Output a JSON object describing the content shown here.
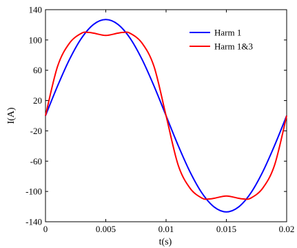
{
  "chart_data": {
    "type": "line",
    "title": "",
    "xlabel": "t(s)",
    "ylabel": "I(A)",
    "xlim": [
      0,
      0.02
    ],
    "ylim": [
      -140,
      140
    ],
    "x_ticks": [
      0,
      0.005,
      0.01,
      0.015,
      0.02
    ],
    "x_tick_labels": [
      "0",
      "0.005",
      "0.01",
      "0.015",
      "0.02"
    ],
    "y_ticks": [
      -140,
      -100,
      -60,
      -20,
      20,
      60,
      100,
      140
    ],
    "y_tick_labels": [
      "-140",
      "-100",
      "-60",
      "-20",
      "20",
      "60",
      "100",
      "140"
    ],
    "grid": false,
    "legend_position": "top-right",
    "series": [
      {
        "name": "Harm 1",
        "color": "#0000ff",
        "x": [
          0,
          0.001,
          0.002,
          0.003,
          0.004,
          0.005,
          0.006,
          0.007,
          0.008,
          0.009,
          0.01,
          0.011,
          0.012,
          0.013,
          0.014,
          0.015,
          0.016,
          0.017,
          0.018,
          0.019,
          0.02
        ],
        "y": [
          0,
          39.2,
          74.6,
          102.7,
          120.7,
          127,
          120.7,
          102.7,
          74.6,
          39.2,
          0,
          -39.2,
          -74.6,
          -102.7,
          -120.7,
          -127,
          -120.7,
          -102.7,
          -74.6,
          -39.2,
          0
        ]
      },
      {
        "name": "Harm 1&3",
        "color": "#ff0000",
        "x": [
          0,
          0.001,
          0.002,
          0.003,
          0.0035,
          0.004,
          0.005,
          0.006,
          0.0065,
          0.007,
          0.008,
          0.009,
          0.01,
          0.011,
          0.012,
          0.013,
          0.0135,
          0.014,
          0.015,
          0.016,
          0.0165,
          0.017,
          0.018,
          0.019,
          0.02
        ],
        "y": [
          0,
          65,
          96,
          109,
          110,
          109,
          106,
          109,
          110,
          109,
          96,
          65,
          0,
          -65,
          -96,
          -109,
          -110,
          -109,
          -106,
          -109,
          -110,
          -109,
          -96,
          -65,
          0
        ]
      }
    ]
  }
}
